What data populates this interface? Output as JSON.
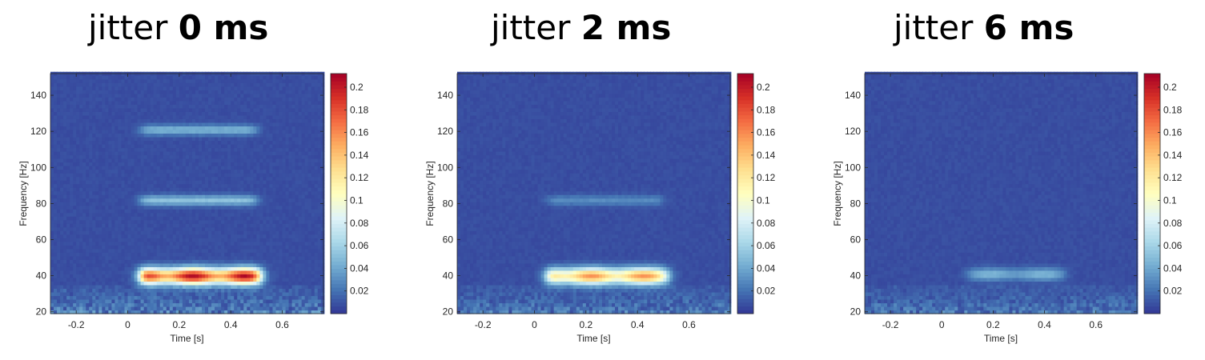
{
  "chart_data": [
    {
      "type": "heatmap",
      "title_prefix": "jitter ",
      "title_value": "0 ms",
      "xlabel": "Time [s]",
      "ylabel": "Frequency [Hz]",
      "xlim": [
        -0.3,
        0.76
      ],
      "ylim": [
        19,
        152
      ],
      "xticks": [
        -0.2,
        0,
        0.2,
        0.4,
        0.6
      ],
      "xtick_labels": [
        "-0.2",
        "0",
        "0.2",
        "0.4",
        "0.6"
      ],
      "yticks": [
        20,
        40,
        60,
        80,
        100,
        120,
        140
      ],
      "ytick_labels": [
        "20",
        "40",
        "60",
        "80",
        "100",
        "120",
        "140"
      ],
      "colorbar": {
        "min": 0,
        "max": 0.212,
        "colormap": "RdYlBu_r",
        "ticks": [
          0.02,
          0.04,
          0.06,
          0.08,
          0.1,
          0.12,
          0.14,
          0.16,
          0.18,
          0.2
        ],
        "tick_labels": [
          "0.02",
          "0.04",
          "0.06",
          "0.08",
          "0.1",
          "0.12",
          "0.14",
          "0.16",
          "0.18",
          "0.2"
        ]
      },
      "background_level": 0.008,
      "bands": [
        {
          "freq_center": 40,
          "freq_halfwidth": 4.5,
          "t_start": 0.05,
          "t_end": 0.52,
          "peak": 0.2
        },
        {
          "freq_center": 82,
          "freq_halfwidth": 2.8,
          "t_start": 0.05,
          "t_end": 0.5,
          "peak": 0.045
        },
        {
          "freq_center": 121,
          "freq_halfwidth": 2.8,
          "t_start": 0.05,
          "t_end": 0.5,
          "peak": 0.038
        }
      ],
      "low_freq_noise": 0.035
    },
    {
      "type": "heatmap",
      "title_prefix": "jitter ",
      "title_value": "2 ms",
      "xlabel": "Time [s]",
      "ylabel": "Frequency [Hz]",
      "xlim": [
        -0.3,
        0.76
      ],
      "ylim": [
        19,
        152
      ],
      "xticks": [
        -0.2,
        0,
        0.2,
        0.4,
        0.6
      ],
      "xtick_labels": [
        "-0.2",
        "0",
        "0.2",
        "0.4",
        "0.6"
      ],
      "yticks": [
        20,
        40,
        60,
        80,
        100,
        120,
        140
      ],
      "ytick_labels": [
        "20",
        "40",
        "60",
        "80",
        "100",
        "120",
        "140"
      ],
      "colorbar": {
        "min": 0,
        "max": 0.212,
        "colormap": "RdYlBu_r",
        "ticks": [
          0.02,
          0.04,
          0.06,
          0.08,
          0.1,
          0.12,
          0.14,
          0.16,
          0.18,
          0.2
        ],
        "tick_labels": [
          "0.02",
          "0.04",
          "0.06",
          "0.08",
          "0.1",
          "0.12",
          "0.14",
          "0.16",
          "0.18",
          "0.2"
        ]
      },
      "background_level": 0.008,
      "bands": [
        {
          "freq_center": 40,
          "freq_halfwidth": 4.5,
          "t_start": 0.05,
          "t_end": 0.52,
          "peak": 0.15
        },
        {
          "freq_center": 82,
          "freq_halfwidth": 2.8,
          "t_start": 0.05,
          "t_end": 0.5,
          "peak": 0.022
        },
        {
          "freq_center": 121,
          "freq_halfwidth": 2.8,
          "t_start": 0.05,
          "t_end": 0.5,
          "peak": 0.0
        }
      ],
      "low_freq_noise": 0.03
    },
    {
      "type": "heatmap",
      "title_prefix": "jitter ",
      "title_value": "6 ms",
      "xlabel": "Time [s]",
      "ylabel": "Frequency [Hz]",
      "xlim": [
        -0.3,
        0.76
      ],
      "ylim": [
        19,
        152
      ],
      "xticks": [
        -0.2,
        0,
        0.2,
        0.4,
        0.6
      ],
      "xtick_labels": [
        "-0.2",
        "0",
        "0.2",
        "0.4",
        "0.6"
      ],
      "yticks": [
        20,
        40,
        60,
        80,
        100,
        120,
        140
      ],
      "ytick_labels": [
        "20",
        "40",
        "60",
        "80",
        "100",
        "120",
        "140"
      ],
      "colorbar": {
        "min": 0,
        "max": 0.212,
        "colormap": "RdYlBu_r",
        "ticks": [
          0.02,
          0.04,
          0.06,
          0.08,
          0.1,
          0.12,
          0.14,
          0.16,
          0.18,
          0.2
        ],
        "tick_labels": [
          "0.02",
          "0.04",
          "0.06",
          "0.08",
          "0.1",
          "0.12",
          "0.14",
          "0.16",
          "0.18",
          "0.2"
        ]
      },
      "background_level": 0.008,
      "bands": [
        {
          "freq_center": 41,
          "freq_halfwidth": 3.5,
          "t_start": 0.1,
          "t_end": 0.48,
          "peak": 0.04
        },
        {
          "freq_center": 82,
          "freq_halfwidth": 2.8,
          "t_start": 0.05,
          "t_end": 0.5,
          "peak": 0.0
        },
        {
          "freq_center": 121,
          "freq_halfwidth": 2.8,
          "t_start": 0.05,
          "t_end": 0.5,
          "peak": 0.0
        }
      ],
      "low_freq_noise": 0.028
    }
  ]
}
